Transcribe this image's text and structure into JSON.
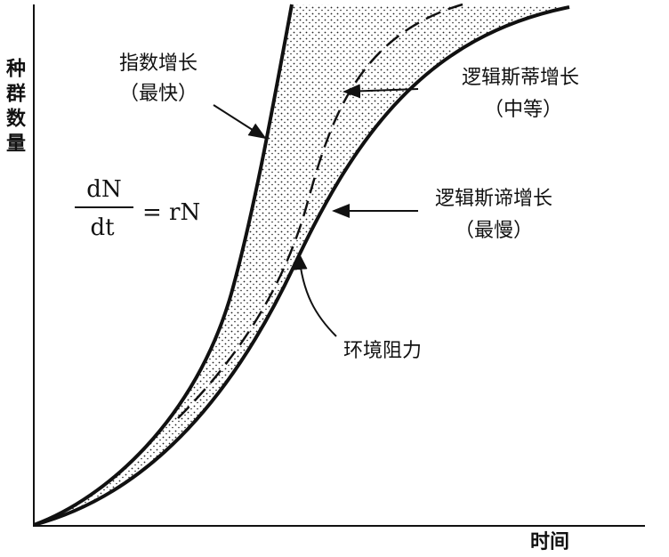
{
  "axes": {
    "y_label": "种群数量",
    "x_label": "时间"
  },
  "curves": {
    "exponential": {
      "label": "指数增长",
      "note": "（最快）"
    },
    "logistic_medium": {
      "label": "逻辑斯蒂增长",
      "note": "（中等）"
    },
    "logistic_slow": {
      "label": "逻辑斯谛增长",
      "note": "（最慢）"
    }
  },
  "region": {
    "label": "环境阻力"
  },
  "equation": {
    "numerator": "dN",
    "denominator": "dt",
    "rhs": "= rN"
  }
}
